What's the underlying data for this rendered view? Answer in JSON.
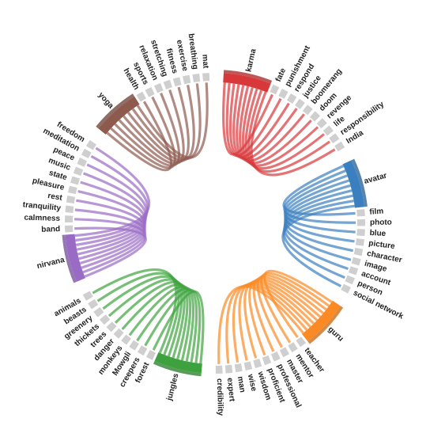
{
  "groups": [
    {
      "hub": "karma",
      "color": "#d9383a",
      "words": [
        "fate",
        "punishment",
        "respond",
        "justice",
        "boomerang",
        "doom",
        "revenge",
        "life",
        "responsibility",
        "India"
      ]
    },
    {
      "hub": "avatar",
      "color": "#3a7fc0",
      "words": [
        "film",
        "photo",
        "blue",
        "picture",
        "character",
        "image",
        "account",
        "person",
        "social network"
      ]
    },
    {
      "hub": "guru",
      "color": "#fb8a24",
      "words": [
        "teacher",
        "mentor",
        "master",
        "professional",
        "proficient",
        "wisdom",
        "wise",
        "man",
        "expert",
        "credibility"
      ]
    },
    {
      "hub": "jungles",
      "color": "#3da23d",
      "words": [
        "forest",
        "creepers",
        "Mowgli",
        "monkeys",
        "danger",
        "trees",
        "thickets",
        "greenery",
        "beasts",
        "animals"
      ]
    },
    {
      "hub": "nirvana",
      "color": "#9a6bc4",
      "words": [
        "band",
        "calmness",
        "tranquility",
        "rest",
        "pleasure",
        "state",
        "music",
        "peace",
        "meditation",
        "freedom"
      ]
    },
    {
      "hub": "yoga",
      "color": "#8f5a4e",
      "words": [
        "health",
        "sports",
        "relaxation",
        "stretching",
        "fitness",
        "exercise",
        "breathing",
        "mat"
      ]
    }
  ]
}
